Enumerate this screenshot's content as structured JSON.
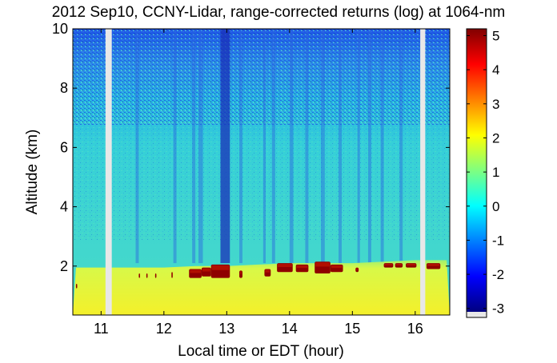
{
  "chart_data": {
    "type": "heatmap",
    "title": "2012 Sep10, CCNY-Lidar, range-corrected returns (log) at 1064-nm",
    "xlabel": "Local time or EDT (hour)",
    "ylabel": "Altitude (km)",
    "xlim": [
      10.55,
      16.55
    ],
    "ylim": [
      0.35,
      10
    ],
    "x_ticks": [
      11,
      12,
      13,
      14,
      15,
      16
    ],
    "y_ticks": [
      2,
      4,
      6,
      8,
      10
    ],
    "colorbar": {
      "colormap": "jet",
      "range": [
        -3.1,
        5.2
      ],
      "ticks": [
        -3,
        -2,
        -1,
        0,
        1,
        2,
        3,
        4,
        5
      ]
    },
    "data_gaps_hours": [
      [
        11.07,
        11.17
      ],
      [
        16.08,
        16.16
      ]
    ],
    "boundary_layer_top_km": [
      [
        10.6,
        1.95
      ],
      [
        11.5,
        1.95
      ],
      [
        12.0,
        1.95
      ],
      [
        12.5,
        2.0
      ],
      [
        13.0,
        2.0
      ],
      [
        13.5,
        2.05
      ],
      [
        14.0,
        2.1
      ],
      [
        14.5,
        2.1
      ],
      [
        15.0,
        2.1
      ],
      [
        15.5,
        2.15
      ],
      [
        16.0,
        2.2
      ],
      [
        16.5,
        2.2
      ]
    ],
    "cloud_segments": [
      {
        "x": [
          10.6,
          10.62
        ],
        "base_km": 1.25,
        "top_km": 1.4
      },
      {
        "x": [
          11.6,
          11.62
        ],
        "base_km": 1.6,
        "top_km": 1.75
      },
      {
        "x": [
          11.72,
          11.74
        ],
        "base_km": 1.6,
        "top_km": 1.75
      },
      {
        "x": [
          11.86,
          11.88
        ],
        "base_km": 1.6,
        "top_km": 1.75
      },
      {
        "x": [
          12.12,
          12.14
        ],
        "base_km": 1.6,
        "top_km": 1.8
      },
      {
        "x": [
          12.4,
          12.6
        ],
        "base_km": 1.6,
        "top_km": 1.9
      },
      {
        "x": [
          12.6,
          12.75
        ],
        "base_km": 1.65,
        "top_km": 1.95
      },
      {
        "x": [
          12.75,
          13.05
        ],
        "base_km": 1.6,
        "top_km": 2.05
      },
      {
        "x": [
          13.2,
          13.25
        ],
        "base_km": 1.6,
        "top_km": 1.85
      },
      {
        "x": [
          13.6,
          13.7
        ],
        "base_km": 1.65,
        "top_km": 1.9
      },
      {
        "x": [
          13.8,
          14.05
        ],
        "base_km": 1.8,
        "top_km": 2.1
      },
      {
        "x": [
          14.1,
          14.3
        ],
        "base_km": 1.8,
        "top_km": 2.05
      },
      {
        "x": [
          14.4,
          14.65
        ],
        "base_km": 1.75,
        "top_km": 2.15
      },
      {
        "x": [
          14.65,
          14.85
        ],
        "base_km": 1.8,
        "top_km": 2.05
      },
      {
        "x": [
          15.05,
          15.1
        ],
        "base_km": 1.8,
        "top_km": 1.95
      },
      {
        "x": [
          15.5,
          15.65
        ],
        "base_km": 1.95,
        "top_km": 2.1
      },
      {
        "x": [
          15.68,
          15.8
        ],
        "base_km": 1.95,
        "top_km": 2.1
      },
      {
        "x": [
          15.85,
          16.02
        ],
        "base_km": 1.95,
        "top_km": 2.1
      },
      {
        "x": [
          16.18,
          16.4
        ],
        "base_km": 1.9,
        "top_km": 2.1
      }
    ],
    "dark_columns_hours": [
      [
        12.9,
        13.05
      ],
      [
        11.55,
        11.6
      ],
      [
        12.15,
        12.2
      ],
      [
        12.45,
        12.5
      ],
      [
        12.55,
        12.62
      ],
      [
        13.2,
        13.25
      ],
      [
        13.58,
        13.62
      ],
      [
        13.72,
        13.77
      ],
      [
        14.0,
        14.06
      ],
      [
        14.25,
        14.3
      ],
      [
        14.5,
        14.56
      ],
      [
        14.78,
        14.83
      ],
      [
        15.08,
        15.12
      ],
      [
        15.25,
        15.3
      ],
      [
        15.45,
        15.5
      ],
      [
        15.75,
        15.8
      ]
    ],
    "grid": false,
    "legend": "colorbar-right"
  }
}
